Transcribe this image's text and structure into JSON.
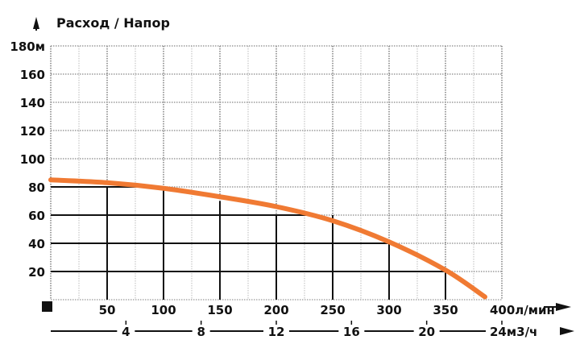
{
  "chart_data": {
    "type": "line",
    "title": "Расход / Напор",
    "xlabel": "л/мин",
    "xlabel_secondary": "м3/ч",
    "ylabel": "м",
    "ylim": [
      0,
      180
    ],
    "xlim": [
      0,
      400
    ],
    "grid": true,
    "y_ticks": [
      "20",
      "40",
      "60",
      "80",
      "100",
      "120",
      "140",
      "160",
      "180м"
    ],
    "x_ticks": [
      "50",
      "100",
      "150",
      "200",
      "250",
      "300",
      "350",
      "400л/мин"
    ],
    "x2_ticks": [
      "4",
      "8",
      "12",
      "16",
      "20",
      "24м3/ч"
    ],
    "series": [
      {
        "name": "Напор",
        "color": "#F07A33",
        "x": [
          0,
          50,
          100,
          150,
          200,
          250,
          300,
          350,
          385
        ],
        "values": [
          85,
          83,
          79,
          73,
          66,
          56,
          41,
          21,
          2
        ]
      }
    ],
    "reference_lines": [
      {
        "x": 50,
        "y": 80
      },
      {
        "x": 100,
        "y": 80
      },
      {
        "x": 150,
        "y": 70
      },
      {
        "x": 200,
        "y": 60
      },
      {
        "x": 250,
        "y": 60
      },
      {
        "x": 300,
        "y": 40
      },
      {
        "x": 350,
        "y": 20
      }
    ]
  },
  "labels": {
    "title": "Расход / Напор",
    "y": [
      "20",
      "40",
      "60",
      "80",
      "100",
      "120",
      "140",
      "160",
      "180м"
    ],
    "x": [
      "50",
      "100",
      "150",
      "200",
      "250",
      "300",
      "350",
      "400л/мин"
    ],
    "x2": [
      "4",
      "8",
      "12",
      "16",
      "20",
      "24м3/ч"
    ]
  }
}
